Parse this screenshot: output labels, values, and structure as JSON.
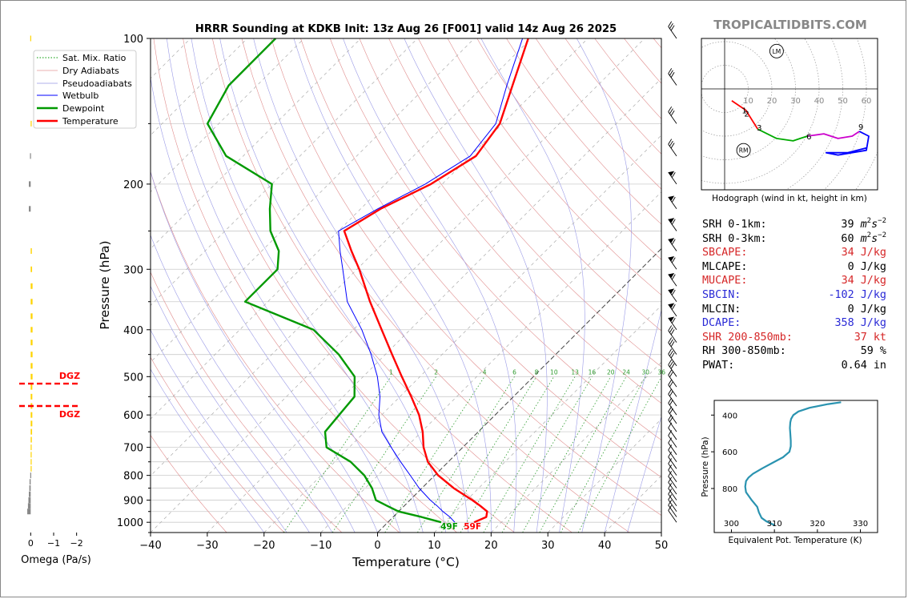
{
  "header": {
    "title": "HRRR Sounding at KDKB Init: 13z Aug 26 [F001] valid 14z Aug 26 2025",
    "watermark": "TROPICALTIDBITS.COM"
  },
  "chart_data": [
    {
      "type": "line",
      "name": "skew-t",
      "xlabel": "Temperature (°C)",
      "ylabel": "Pressure (hPa)",
      "xlim": [
        -40,
        50
      ],
      "ylim": [
        1050,
        100
      ],
      "y_scale": "log",
      "xticks": [
        "−40",
        "−30",
        "−20",
        "−10",
        "0",
        "10",
        "20",
        "30",
        "40",
        "50"
      ],
      "yticks": [
        "100",
        "200",
        "300",
        "400",
        "500",
        "600",
        "700",
        "800",
        "900",
        "1000"
      ],
      "legend": {
        "placement": "top-left",
        "entries": [
          "Sat. Mix. Ratio",
          "Dry Adiabats",
          "Pseudoadiabats",
          "Wetbulb",
          "Dewpoint",
          "Temperature"
        ]
      },
      "mixing_ratio_labels": [
        "1",
        "2",
        "4",
        "6",
        "8",
        "10",
        "13",
        "16",
        "20",
        "24",
        "30",
        "36"
      ],
      "mixing_ratio_values": [
        1,
        2,
        4,
        6,
        8,
        10,
        13,
        16,
        20,
        24,
        30,
        36
      ],
      "surface_labels": {
        "dewpoint": "49F",
        "temperature": "59F"
      },
      "series": [
        {
          "name": "Temperature",
          "color": "#ff0000",
          "p": [
            1000,
            975,
            950,
            925,
            900,
            850,
            800,
            750,
            700,
            650,
            600,
            550,
            500,
            450,
            400,
            350,
            300,
            275,
            250,
            225,
            200,
            175,
            150,
            125,
            100
          ],
          "t": [
            15.2,
            16.4,
            15.6,
            13.4,
            11.0,
            5.6,
            0.6,
            -3.6,
            -6.9,
            -9.8,
            -13.4,
            -18.0,
            -23.2,
            -28.8,
            -35.0,
            -42.0,
            -49.6,
            -54.2,
            -59.0,
            -56.5,
            -52.0,
            -49.0,
            -50.5,
            -55.0,
            -60.5
          ]
        },
        {
          "name": "Dewpoint",
          "color": "#009900",
          "p": [
            1000,
            975,
            950,
            925,
            900,
            850,
            800,
            750,
            700,
            650,
            600,
            550,
            500,
            450,
            400,
            350,
            300,
            275,
            250,
            225,
            200,
            175,
            150,
            125,
            100
          ],
          "t": [
            9.4,
            5.0,
            0.0,
            -3.0,
            -6.0,
            -8.8,
            -12.4,
            -17.2,
            -24.0,
            -27.0,
            -27.5,
            -28.0,
            -31.5,
            -38.2,
            -47.0,
            -64.0,
            -64.0,
            -67.0,
            -72.0,
            -76.0,
            -80.0,
            -93.0,
            -102.0,
            -105.0,
            -105.0
          ]
        },
        {
          "name": "Wetbulb",
          "color": "#0000ff",
          "p": [
            1000,
            975,
            950,
            925,
            900,
            850,
            800,
            750,
            700,
            650,
            600,
            550,
            500,
            450,
            400,
            350,
            300,
            275,
            250,
            225,
            200,
            175,
            150,
            125,
            100
          ],
          "t": [
            11.8,
            10.0,
            7.8,
            5.8,
            3.6,
            -0.5,
            -4.3,
            -8.4,
            -12.6,
            -17.0,
            -20.5,
            -23.5,
            -27.5,
            -32.5,
            -38.5,
            -46.0,
            -52.5,
            -56.2,
            -60.0,
            -57.0,
            -53.0,
            -50.0,
            -51.2,
            -56.0,
            -61.5
          ]
        }
      ]
    },
    {
      "type": "bar",
      "name": "omega-profile",
      "xlabel": "Omega (Pa/s)",
      "xticks": [
        "0",
        "−1",
        "−2"
      ],
      "xlim": [
        0.5,
        -2.5
      ],
      "dgz_labels": [
        "DGZ",
        "DGZ"
      ],
      "dgz_p": [
        517,
        575
      ],
      "p": [
        100,
        150,
        175,
        200,
        225,
        275,
        300,
        325,
        350,
        375,
        400,
        425,
        450,
        475,
        500,
        525,
        550,
        575,
        600,
        625,
        650,
        675,
        700,
        725,
        750,
        775,
        800,
        825,
        850,
        875,
        900,
        925,
        950
      ],
      "omega": [
        0.02,
        -0.04,
        0.03,
        0.08,
        0.08,
        -0.05,
        -0.06,
        -0.08,
        -0.08,
        -0.08,
        -0.08,
        -0.08,
        -0.08,
        -0.08,
        -0.08,
        -0.07,
        -0.07,
        -0.07,
        -0.07,
        -0.07,
        -0.06,
        -0.05,
        -0.04,
        -0.03,
        -0.02,
        -0.01,
        0.02,
        0.05,
        0.06,
        0.08,
        0.1,
        0.12,
        0.15
      ],
      "colors": [
        "#ffd400",
        "#ffd400",
        "#888888",
        "#888888",
        "#888888",
        "#ffd400",
        "#ffd400",
        "#ffd400",
        "#ffd400",
        "#ffd400",
        "#ffd400",
        "#ffd400",
        "#ffd400",
        "#ffd400",
        "#ffd400",
        "#ffd400",
        "#ffd400",
        "#ffd400",
        "#ffd400",
        "#ffd400",
        "#ffd400",
        "#ffd400",
        "#ffd400",
        "#ffd400",
        "#ffd400",
        "#ffd400",
        "#888888",
        "#888888",
        "#888888",
        "#888888",
        "#888888",
        "#888888",
        "#888888"
      ]
    },
    {
      "type": "line",
      "name": "hodograph",
      "title": "Hodograph (wind in kt, height in km)",
      "ring_labels": [
        "10",
        "20",
        "30",
        "40",
        "50",
        "60"
      ],
      "point_labels": [
        "1",
        "2",
        "3",
        "6",
        "9"
      ],
      "storm_motion_labels": [
        "LM",
        "RM"
      ],
      "storm_motion": {
        "LM": [
          22,
          16
        ],
        "RM": [
          8,
          -26
        ]
      },
      "segments": [
        {
          "km": "0-1",
          "color": "#ff0000",
          "u": [
            3,
            9
          ],
          "v": [
            -5,
            -9
          ]
        },
        {
          "km": "1-3",
          "color": "#ff0000",
          "u": [
            9,
            14
          ],
          "v": [
            -9,
            -17
          ]
        },
        {
          "km": "3-6",
          "color": "#00aa00",
          "u": [
            14,
            22,
            29,
            32,
            35
          ],
          "v": [
            -17,
            -21,
            -22,
            -21,
            -20
          ]
        },
        {
          "km": "6-9",
          "color": "#cc00cc",
          "u": [
            35,
            42,
            48,
            54,
            57
          ],
          "v": [
            -20,
            -19,
            -21,
            -20,
            -18
          ]
        },
        {
          "km": "9+",
          "color": "#0000ff",
          "u": [
            57,
            61,
            60,
            48,
            43,
            52,
            60
          ],
          "v": [
            -18,
            -20,
            -26,
            -28,
            -27,
            -27,
            -25
          ]
        }
      ]
    },
    {
      "type": "line",
      "name": "theta-e",
      "xlabel": "Equivalent Pot. Temperature (K)",
      "ylabel": "Pressure (hPa)",
      "xticks": [
        "300",
        "310",
        "320",
        "330"
      ],
      "yticks": [
        "400",
        "600",
        "800"
      ],
      "xlim": [
        296,
        334
      ],
      "ylim": [
        1040,
        320
      ],
      "color": "#2a93b0",
      "p": [
        1000,
        980,
        960,
        930,
        900,
        860,
        820,
        790,
        760,
        740,
        720,
        690,
        660,
        630,
        600,
        570,
        540,
        500,
        470,
        440,
        420,
        400,
        380,
        360,
        340,
        330
      ],
      "theta_e": [
        310.0,
        308.2,
        307.0,
        306.4,
        306.0,
        304.6,
        303.4,
        303.2,
        303.4,
        304.0,
        305.0,
        307.2,
        309.6,
        312.0,
        313.5,
        313.8,
        313.8,
        313.7,
        313.6,
        313.7,
        313.9,
        314.4,
        315.6,
        318.2,
        322.5,
        325.5
      ]
    }
  ],
  "params": {
    "rows": [
      {
        "label": "SRH 0-1km:",
        "value": "39",
        "unit": "m",
        "sup": "2",
        "unit2": "s",
        "sup2": "−2",
        "color": "black"
      },
      {
        "label": "SRH 0-3km:",
        "value": "60",
        "unit": "m",
        "sup": "2",
        "unit2": "s",
        "sup2": "−2",
        "color": "black"
      },
      {
        "label": "SBCAPE:",
        "value": "34 J/kg",
        "color": "red"
      },
      {
        "label": "MLCAPE:",
        "value": "0 J/kg",
        "color": "black"
      },
      {
        "label": "MUCAPE:",
        "value": "34 J/kg",
        "color": "red"
      },
      {
        "label": "SBCIN:",
        "value": "-102 J/kg",
        "color": "blue"
      },
      {
        "label": "MLCIN:",
        "value": "0 J/kg",
        "color": "black"
      },
      {
        "label": "DCAPE:",
        "value": "358 J/kg",
        "color": "blue"
      },
      {
        "label": "SHR 200-850mb:",
        "value": "37 kt",
        "color": "red"
      },
      {
        "label": "RH 300-850mb:",
        "value": "59 %",
        "color": "black"
      },
      {
        "label": "PWAT:",
        "value": "0.64 in",
        "color": "black"
      }
    ]
  }
}
